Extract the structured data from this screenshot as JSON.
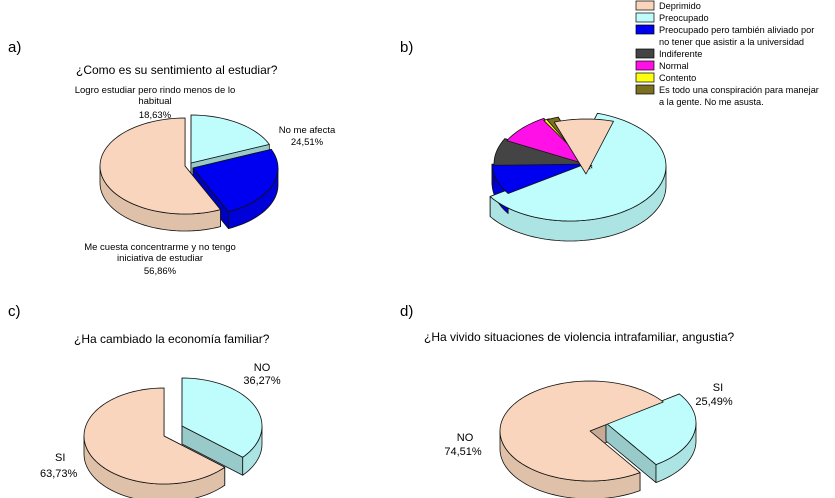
{
  "colors": {
    "deprimido": "#F8D5BC",
    "preocupado": "#BFFCFC",
    "preocupado_aliviado": "#0000F0",
    "indiferente": "#444444",
    "normal": "#FF10E6",
    "contento": "#FFFF10",
    "conspiracion": "#7A7020"
  },
  "chart_data": [
    {
      "type": "pie",
      "panel": "a)",
      "title": "¿Como es su sentimiento al estudiar?",
      "slices": [
        {
          "label": "Logro estudiar pero rindo menos de lo habitual",
          "value": 18.63,
          "display": "18,63%",
          "color_key": "preocupado"
        },
        {
          "label": "No me afecta",
          "value": 24.51,
          "display": "24,51%",
          "color_key": "preocupado_aliviado"
        },
        {
          "label": "Me cuesta concentrarme y no tengo iniciativa de estudiar",
          "value": 56.86,
          "display": "56,86%",
          "color_key": "deprimido"
        }
      ],
      "label_text": {
        "logro_1": "Logro estudiar pero rindo menos de lo",
        "logro_2": "habitual",
        "no_afecta": "No me afecta",
        "cuesta_1": "Me cuesta concentrarme y no tengo",
        "cuesta_2": "iniciativa de estudiar"
      }
    },
    {
      "type": "pie",
      "panel": "b)",
      "title": "",
      "legend": [
        "Deprimido",
        "Preocupado",
        "Preocupado pero también aliviado por no tener que asistir a la universidad",
        "Indiferente",
        "Normal",
        "Contento",
        "Es todo una conspiración para manejar a la gente. No me asusta."
      ],
      "legend_lines": [
        [
          "Deprimido"
        ],
        [
          "Preocupado"
        ],
        [
          "Preocupado pero también aliviado por",
          "no tener que asistir a la universidad"
        ],
        [
          "Indiferente"
        ],
        [
          "Normal"
        ],
        [
          "Contento"
        ],
        [
          "Es todo una conspiración para manejar",
          "a la gente. No me asusta."
        ]
      ],
      "slices": [
        {
          "label": "Preocupado",
          "value": 61.0,
          "color_key": "preocupado"
        },
        {
          "label": "Preocupado pero también aliviado por no tener que asistir a la universidad",
          "value": 9.0,
          "color_key": "preocupado_aliviado"
        },
        {
          "label": "Indiferente",
          "value": 8.0,
          "color_key": "indiferente"
        },
        {
          "label": "Normal",
          "value": 9.0,
          "color_key": "normal"
        },
        {
          "label": "Contento",
          "value": 1.0,
          "color_key": "contento"
        },
        {
          "label": "Es todo una conspiración para manejar a la gente. No me asusta.",
          "value": 2.0,
          "color_key": "conspiracion"
        },
        {
          "label": "Deprimido",
          "value": 10.0,
          "color_key": "deprimido"
        }
      ]
    },
    {
      "type": "pie",
      "panel": "c)",
      "title": "¿Ha cambiado la economía familiar?",
      "slices": [
        {
          "label": "NO",
          "value": 36.27,
          "display": "36,27%",
          "color_key": "preocupado"
        },
        {
          "label": "SI",
          "value": 63.73,
          "display": "63,73%",
          "color_key": "deprimido"
        }
      ]
    },
    {
      "type": "pie",
      "panel": "d)",
      "title": "¿Ha vivido situaciones de violencia intrafamiliar, angustia?",
      "slices": [
        {
          "label": "SI",
          "value": 25.49,
          "display": "25,49%",
          "color_key": "preocupado"
        },
        {
          "label": "NO",
          "value": 74.51,
          "display": "74,51%",
          "color_key": "deprimido"
        }
      ]
    }
  ]
}
